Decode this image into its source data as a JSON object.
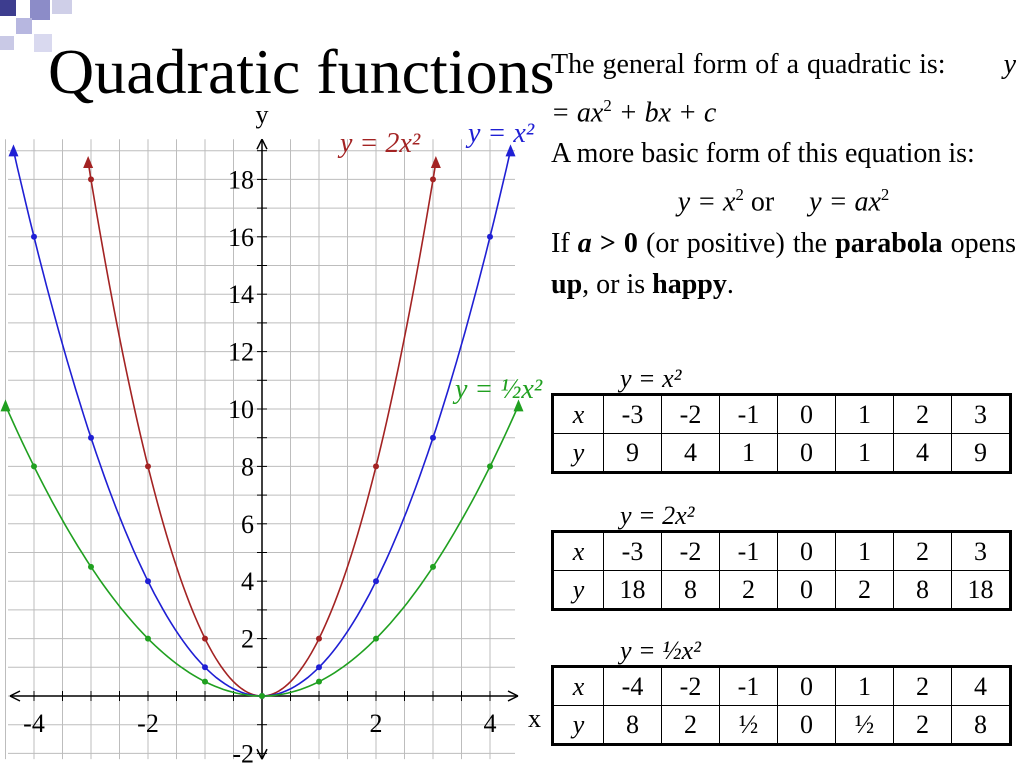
{
  "title": "Quadratic functions",
  "text": {
    "line1_a": "The general form of a quadratic is:",
    "line1_b": "y = ax",
    "line1_c": " + bx + c",
    "line2": "A more basic form of this equation is:",
    "line3_a": "y = x",
    "line3_b": " or ",
    "line3_c": "y = ax",
    "line4_a": "If ",
    "line4_b": "a",
    "line4_c": " > 0",
    "line4_d": " (or positive) the ",
    "line4_e": "parabola",
    "line4_f": " opens ",
    "line4_g": "up",
    "line4_h": ", or is ",
    "line4_i": "happy",
    "line4_j": "."
  },
  "graph": {
    "x_axis_label": "x",
    "y_axis_label": "y",
    "x_ticks": [
      "-4",
      "-2",
      "2",
      "4"
    ],
    "y_ticks": [
      "18",
      "16",
      "14",
      "12",
      "10",
      "8",
      "6",
      "4",
      "2",
      "-2"
    ],
    "curve_labels": {
      "blue": "y = x²",
      "red": "y = 2x²",
      "green": "y = ½x²"
    },
    "colors": {
      "blue": "#1f1fd4",
      "red": "#a32323",
      "green": "#20a020",
      "grid": "#bdbdbd"
    }
  },
  "tables": [
    {
      "caption": "y = x²",
      "x_header": "x",
      "y_header": "y",
      "x": [
        "-3",
        "-2",
        "-1",
        "0",
        "1",
        "2",
        "3"
      ],
      "y": [
        "9",
        "4",
        "1",
        "0",
        "1",
        "4",
        "9"
      ]
    },
    {
      "caption": "y = 2x²",
      "x_header": "x",
      "y_header": "y",
      "x": [
        "-3",
        "-2",
        "-1",
        "0",
        "1",
        "2",
        "3"
      ],
      "y": [
        "18",
        "8",
        "2",
        "0",
        "2",
        "8",
        "18"
      ]
    },
    {
      "caption": "y = ½x²",
      "x_header": "x",
      "y_header": "y",
      "x": [
        "-4",
        "-2",
        "-1",
        "0",
        "1",
        "2",
        "4"
      ],
      "y": [
        "8",
        "2",
        "½",
        "0",
        "½",
        "2",
        "8"
      ]
    }
  ]
}
